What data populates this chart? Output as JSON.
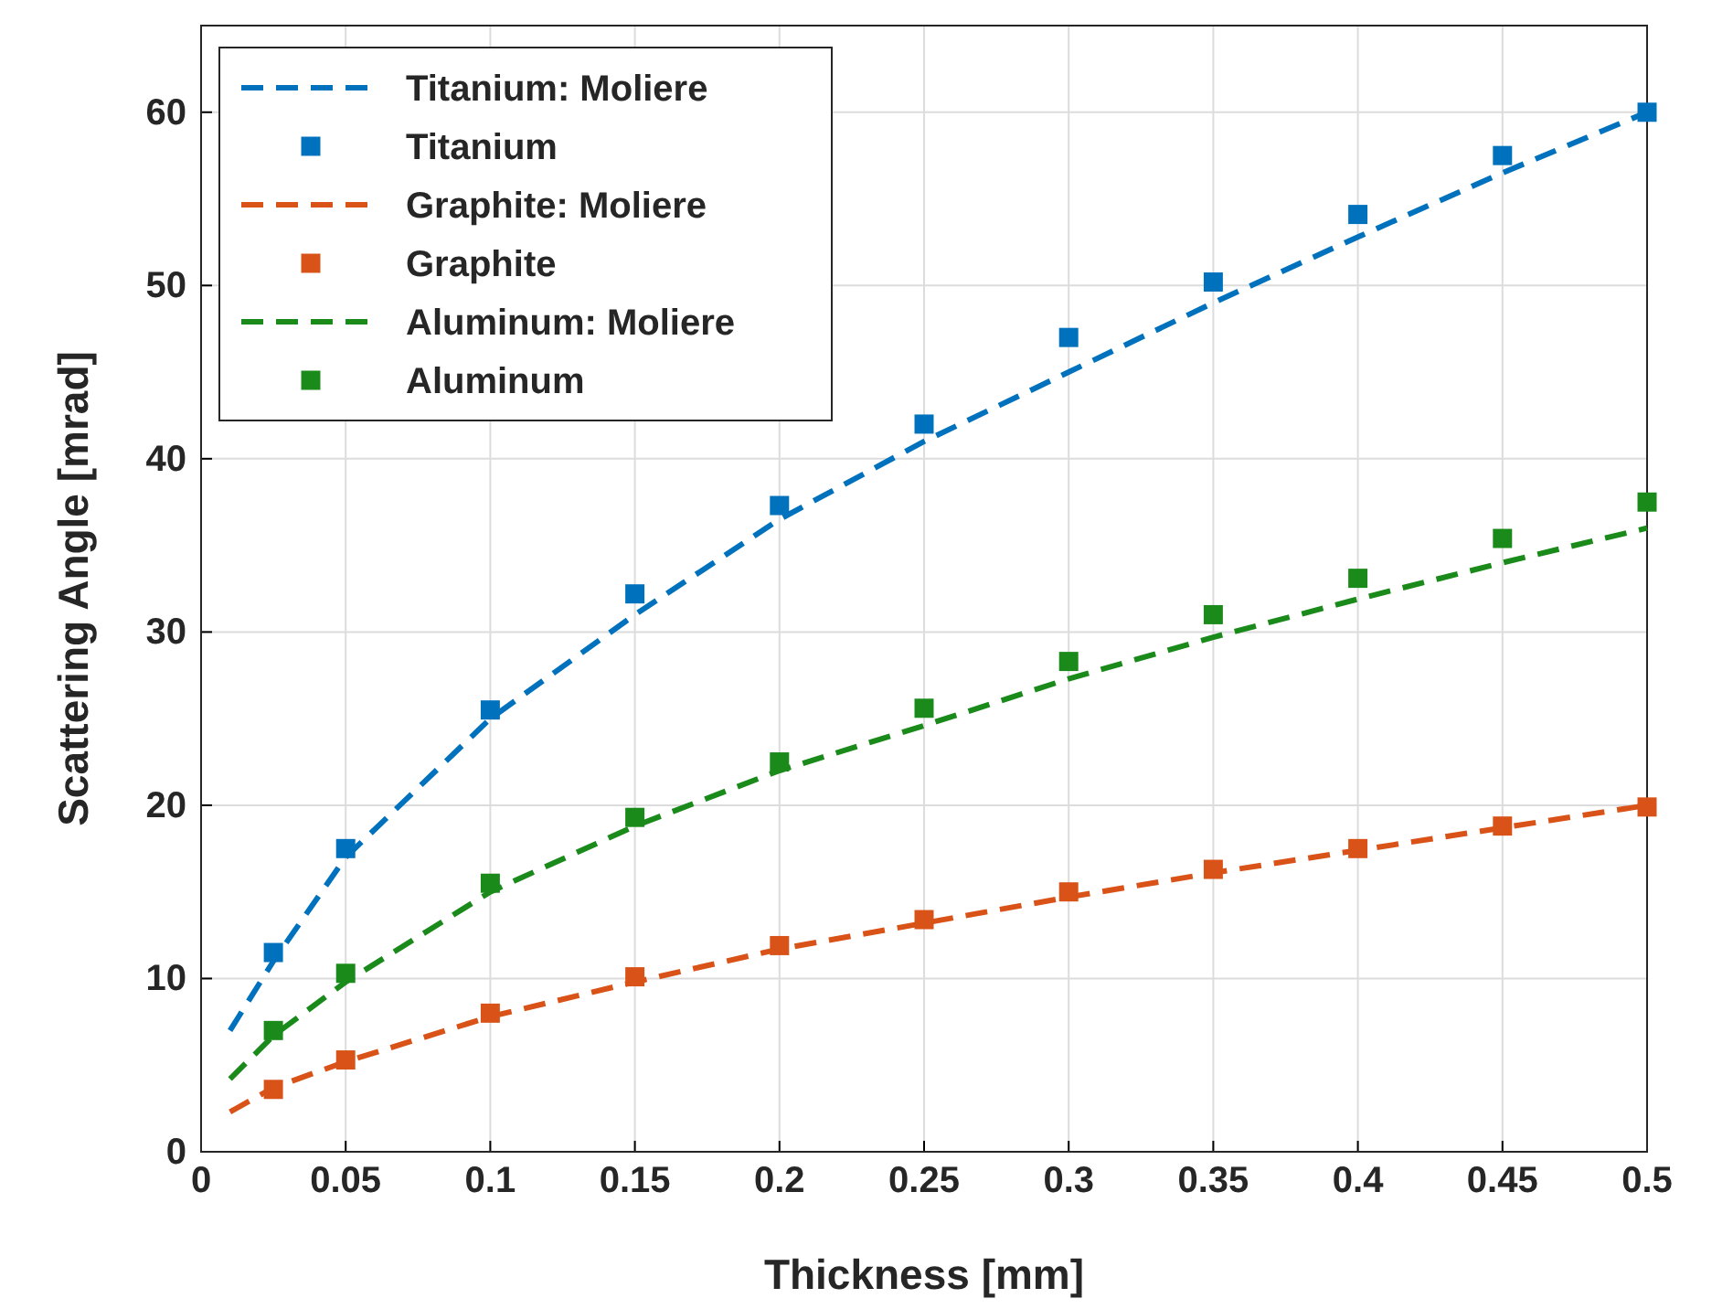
{
  "chart_data": {
    "type": "line",
    "xlabel": "Thickness [mm]",
    "ylabel": "Scattering Angle [mrad]",
    "xlim": [
      0,
      0.5
    ],
    "ylim": [
      0,
      65
    ],
    "xticks": [
      0,
      0.05,
      0.1,
      0.15,
      0.2,
      0.25,
      0.3,
      0.35,
      0.4,
      0.45,
      0.5
    ],
    "yticks": [
      0,
      10,
      20,
      30,
      40,
      50,
      60
    ],
    "grid": true,
    "legend": "top left",
    "series": [
      {
        "name": "Titanium: Moliere",
        "line_style": "dashed",
        "marker": "none",
        "color": "#0072bd",
        "x": [
          0.01,
          0.025,
          0.05,
          0.1,
          0.15,
          0.2,
          0.25,
          0.3,
          0.35,
          0.4,
          0.45,
          0.5
        ],
        "values": [
          7,
          11,
          17,
          25,
          31,
          36.5,
          41,
          45,
          49,
          52.8,
          56.5,
          60
        ]
      },
      {
        "name": "Titanium",
        "type": "scatter",
        "marker": "square",
        "color": "#0072bd",
        "x": [
          0.025,
          0.05,
          0.1,
          0.15,
          0.2,
          0.25,
          0.3,
          0.35,
          0.4,
          0.45,
          0.5
        ],
        "values": [
          11.5,
          17.5,
          25.5,
          32.2,
          37.3,
          42,
          47,
          50.2,
          54.1,
          57.5,
          60
        ]
      },
      {
        "name": "Graphite: Moliere",
        "line_style": "dashed",
        "marker": "none",
        "color": "#d95319",
        "x": [
          0.01,
          0.025,
          0.05,
          0.1,
          0.15,
          0.2,
          0.25,
          0.3,
          0.35,
          0.4,
          0.45,
          0.5
        ],
        "values": [
          2.3,
          3.7,
          5.2,
          7.8,
          9.8,
          11.7,
          13.2,
          14.7,
          16.1,
          17.4,
          18.7,
          20
        ]
      },
      {
        "name": "Graphite",
        "type": "scatter",
        "marker": "square",
        "color": "#d95319",
        "x": [
          0.025,
          0.05,
          0.1,
          0.15,
          0.2,
          0.25,
          0.3,
          0.35,
          0.4,
          0.45,
          0.5
        ],
        "values": [
          3.6,
          5.3,
          8,
          10.1,
          11.9,
          13.4,
          15,
          16.3,
          17.5,
          18.8,
          19.9
        ]
      },
      {
        "name": "Aluminum: Moliere",
        "line_style": "dashed",
        "marker": "none",
        "color": "#1a8a1a",
        "x": [
          0.01,
          0.025,
          0.05,
          0.1,
          0.15,
          0.2,
          0.25,
          0.3,
          0.35,
          0.4,
          0.45,
          0.5
        ],
        "values": [
          4.2,
          6.7,
          9.8,
          15,
          18.8,
          22,
          24.6,
          27.3,
          29.7,
          31.9,
          34,
          36
        ]
      },
      {
        "name": "Aluminum",
        "type": "scatter",
        "marker": "square",
        "color": "#1a8a1a",
        "x": [
          0.025,
          0.05,
          0.1,
          0.15,
          0.2,
          0.25,
          0.3,
          0.35,
          0.4,
          0.45,
          0.5
        ],
        "values": [
          7,
          10.3,
          15.5,
          19.3,
          22.5,
          25.6,
          28.3,
          31,
          33.1,
          35.4,
          37.5
        ]
      }
    ]
  }
}
